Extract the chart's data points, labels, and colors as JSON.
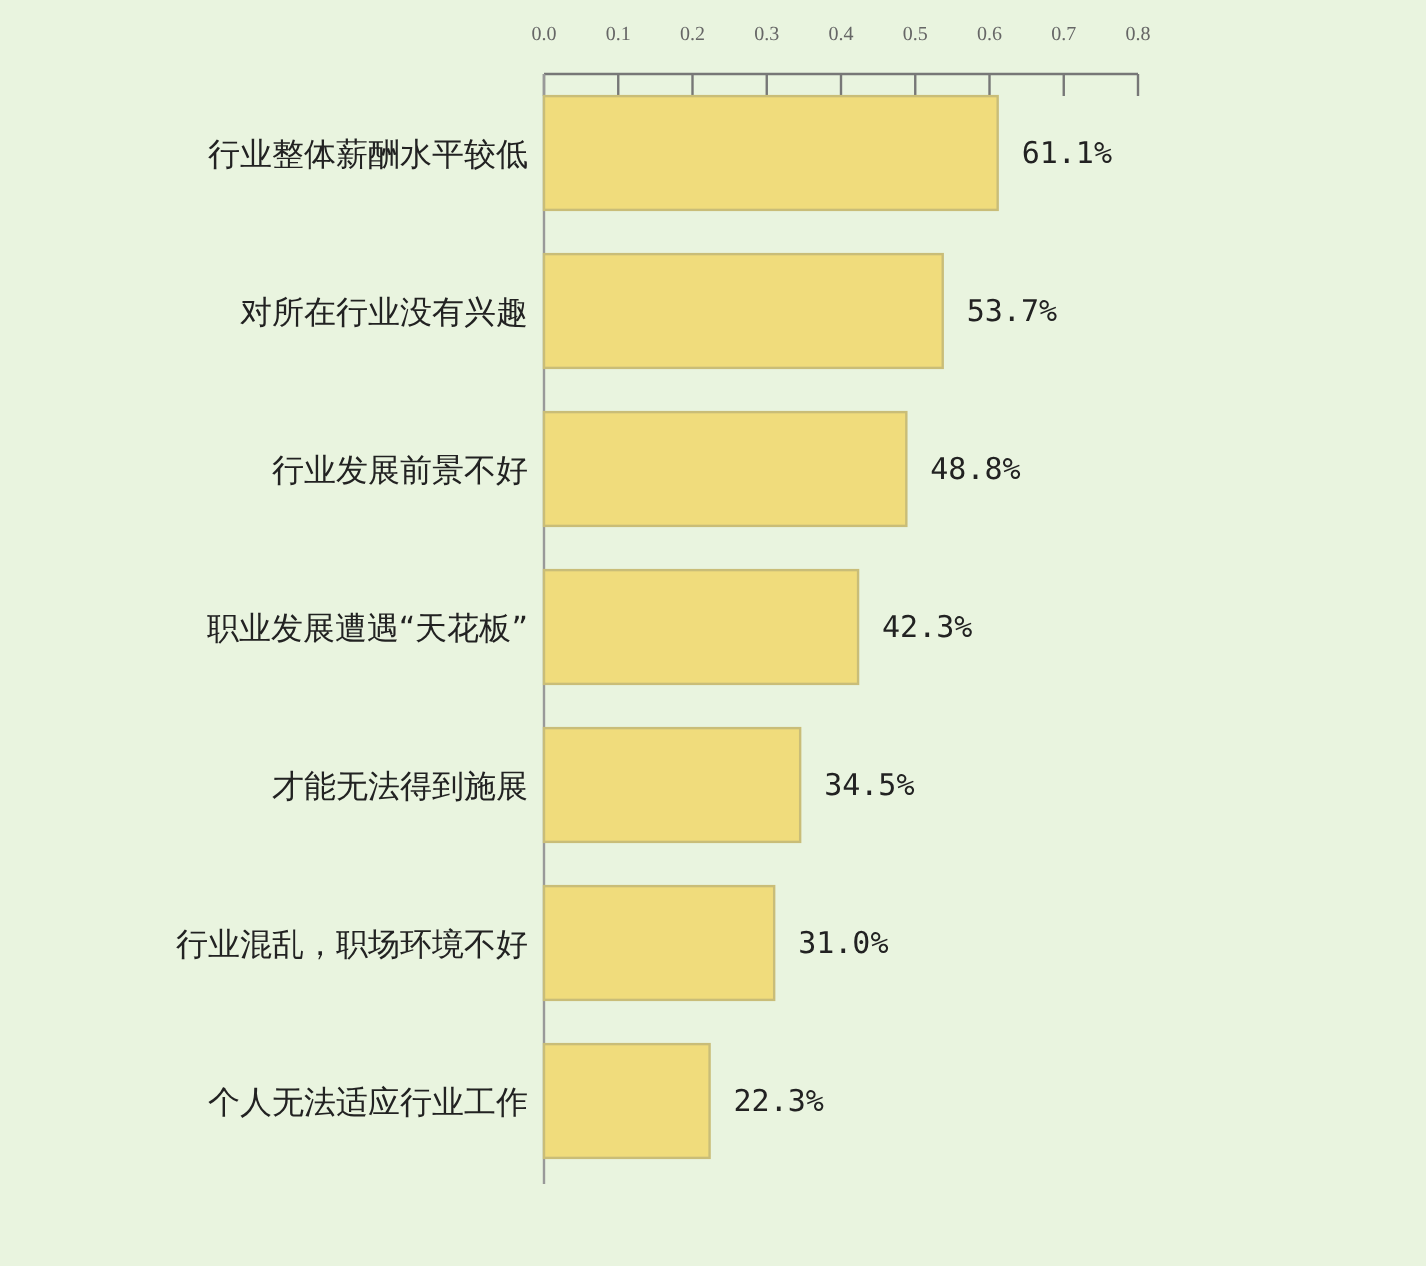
{
  "chart_data": {
    "type": "bar",
    "orientation": "horizontal",
    "categories": [
      "行业整体薪酬水平较低",
      "对所在行业没有兴趣",
      "行业发展前景不好",
      "职业发展遭遇“天花板”",
      "才能无法得到施展",
      "行业混乱，职场环境不好",
      "个人无法适应行业工作"
    ],
    "values": [
      0.611,
      0.537,
      0.488,
      0.423,
      0.345,
      0.31,
      0.223
    ],
    "value_labels": [
      "61.1%",
      "53.7%",
      "48.8%",
      "42.3%",
      "34.5%",
      "31.0%",
      "22.3%"
    ],
    "color": "#f0dc7c",
    "xlim": [
      0,
      0.8
    ],
    "xticks": [
      {
        "value": 0,
        "label": "0.0"
      },
      0.1,
      0.2,
      0.3,
      0.4,
      0.5,
      0.6,
      0.7,
      0.8
    ]
  }
}
